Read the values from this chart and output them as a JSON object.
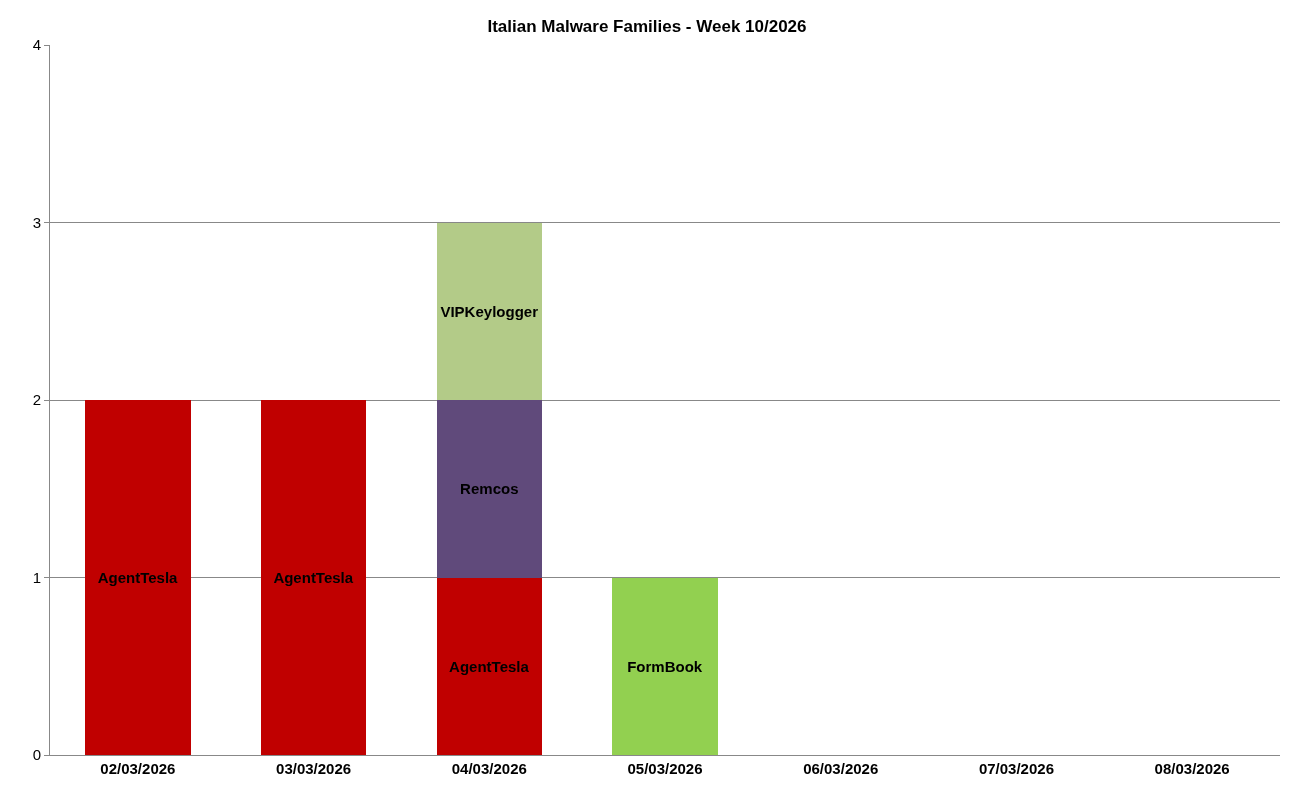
{
  "chart_data": {
    "type": "bar",
    "title": "Italian Malware Families - Week 10/2026",
    "stacked": true,
    "categories": [
      "02/03/2026",
      "03/03/2026",
      "04/03/2026",
      "05/03/2026",
      "06/03/2026",
      "07/03/2026",
      "08/03/2026"
    ],
    "series": [
      {
        "name": "AgentTesla",
        "color": "#c00000",
        "values": [
          2,
          2,
          1,
          null,
          null,
          null,
          null
        ]
      },
      {
        "name": "Remcos",
        "color": "#604a7b",
        "values": [
          null,
          null,
          1,
          null,
          null,
          null,
          null
        ]
      },
      {
        "name": "VIPKeylogger",
        "color": "#b3cb88",
        "values": [
          null,
          null,
          1,
          null,
          null,
          null,
          null
        ]
      },
      {
        "name": "FormBook",
        "color": "#92d050",
        "values": [
          null,
          null,
          null,
          1,
          null,
          null,
          null
        ]
      }
    ],
    "ylim": [
      0,
      4
    ],
    "yticks": [
      0,
      1,
      2,
      3,
      4
    ],
    "grid": "y",
    "legend": false
  }
}
